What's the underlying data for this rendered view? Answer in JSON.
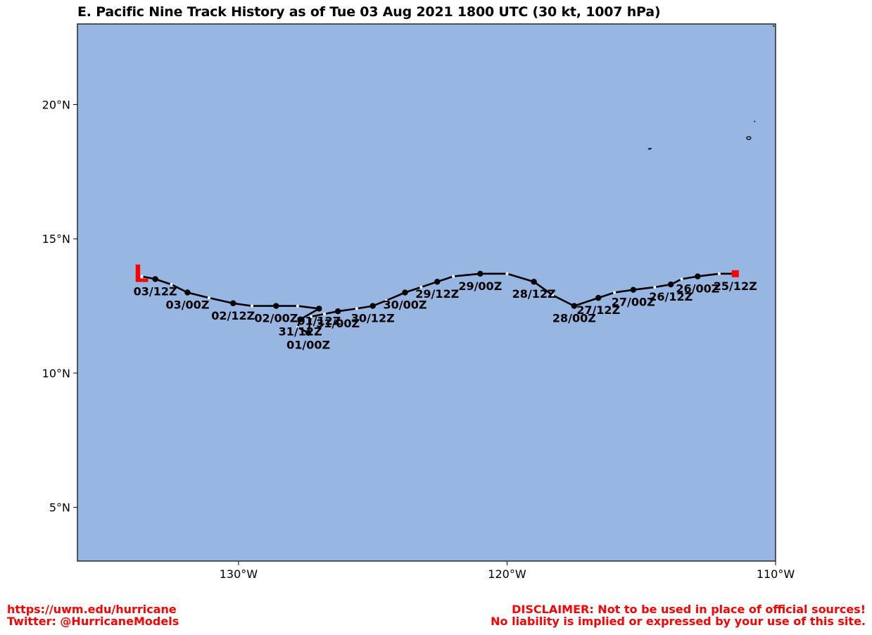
{
  "title": "E. Pacific Nine Track History as of Tue 03 Aug 2021 1800 UTC (30 kt, 1007 hPa)",
  "footer": {
    "left_line1": "https://uwm.edu/hurricane",
    "left_line2": "Twitter: @HurricaneModels",
    "right_line1": "DISCLAIMER: Not to be used in place of official sources!",
    "right_line2": "No liability is implied or expressed by your use of this site."
  },
  "colors": {
    "ocean": "#98b6e2",
    "track": "#000000",
    "accent": "#ff0000",
    "intermediate_dot": "#ffffff"
  },
  "map": {
    "lon_range": [
      -136,
      -110
    ],
    "lat_range": [
      3,
      23
    ],
    "lon_ticks": [
      {
        "value": -130,
        "label": "130°W"
      },
      {
        "value": -120,
        "label": "120°W"
      },
      {
        "value": -110,
        "label": "110°W"
      }
    ],
    "lat_ticks": [
      {
        "value": 20,
        "label": "20°N"
      },
      {
        "value": 15,
        "label": "15°N"
      },
      {
        "value": 10,
        "label": "10°N"
      },
      {
        "value": 5,
        "label": "5°N"
      }
    ],
    "current_position_symbol": "L",
    "start_marker": "square",
    "track": [
      {
        "lon": -111.5,
        "lat": 13.7,
        "label": "25/12Z"
      },
      {
        "lon": -112.1,
        "lat": 13.7,
        "label": ""
      },
      {
        "lon": -112.9,
        "lat": 13.6,
        "label": "26/00Z"
      },
      {
        "lon": -113.5,
        "lat": 13.5,
        "label": ""
      },
      {
        "lon": -113.9,
        "lat": 13.3,
        "label": "26/12Z"
      },
      {
        "lon": -114.5,
        "lat": 13.2,
        "label": ""
      },
      {
        "lon": -115.3,
        "lat": 13.1,
        "label": "27/00Z"
      },
      {
        "lon": -116.0,
        "lat": 13.0,
        "label": ""
      },
      {
        "lon": -116.6,
        "lat": 12.8,
        "label": "27/12Z"
      },
      {
        "lon": -117.5,
        "lat": 12.5,
        "label": "28/00Z"
      },
      {
        "lon": -118.3,
        "lat": 12.9,
        "label": ""
      },
      {
        "lon": -119.0,
        "lat": 13.4,
        "label": "28/12Z"
      },
      {
        "lon": -120.0,
        "lat": 13.7,
        "label": ""
      },
      {
        "lon": -121.0,
        "lat": 13.7,
        "label": "29/00Z"
      },
      {
        "lon": -122.0,
        "lat": 13.6,
        "label": ""
      },
      {
        "lon": -122.6,
        "lat": 13.4,
        "label": "29/12Z"
      },
      {
        "lon": -123.2,
        "lat": 13.2,
        "label": ""
      },
      {
        "lon": -123.8,
        "lat": 13.0,
        "label": "30/00Z"
      },
      {
        "lon": -124.5,
        "lat": 12.7,
        "label": ""
      },
      {
        "lon": -125.0,
        "lat": 12.5,
        "label": "30/12Z"
      },
      {
        "lon": -125.6,
        "lat": 12.4,
        "label": ""
      },
      {
        "lon": -126.3,
        "lat": 12.3,
        "label": "31/00Z"
      },
      {
        "lon": -126.8,
        "lat": 12.2,
        "label": ""
      },
      {
        "lon": -127.3,
        "lat": 12.1,
        "label": ""
      },
      {
        "lon": -127.4,
        "lat": 11.5,
        "label": "01/00Z"
      },
      {
        "lon": -127.8,
        "lat": 11.7,
        "label": ""
      },
      {
        "lon": -127.7,
        "lat": 12.0,
        "label": "31/12Z"
      },
      {
        "lon": -127.0,
        "lat": 12.4,
        "label": "01/12Z"
      },
      {
        "lon": -127.8,
        "lat": 12.5,
        "label": ""
      },
      {
        "lon": -128.6,
        "lat": 12.5,
        "label": "02/00Z"
      },
      {
        "lon": -129.5,
        "lat": 12.5,
        "label": ""
      },
      {
        "lon": -130.2,
        "lat": 12.6,
        "label": "02/12Z"
      },
      {
        "lon": -131.1,
        "lat": 12.8,
        "label": ""
      },
      {
        "lon": -131.9,
        "lat": 13.0,
        "label": "03/00Z"
      },
      {
        "lon": -132.5,
        "lat": 13.3,
        "label": ""
      },
      {
        "lon": -133.1,
        "lat": 13.5,
        "label": "03/12Z"
      },
      {
        "lon": -133.6,
        "lat": 13.6,
        "label": ""
      }
    ]
  }
}
